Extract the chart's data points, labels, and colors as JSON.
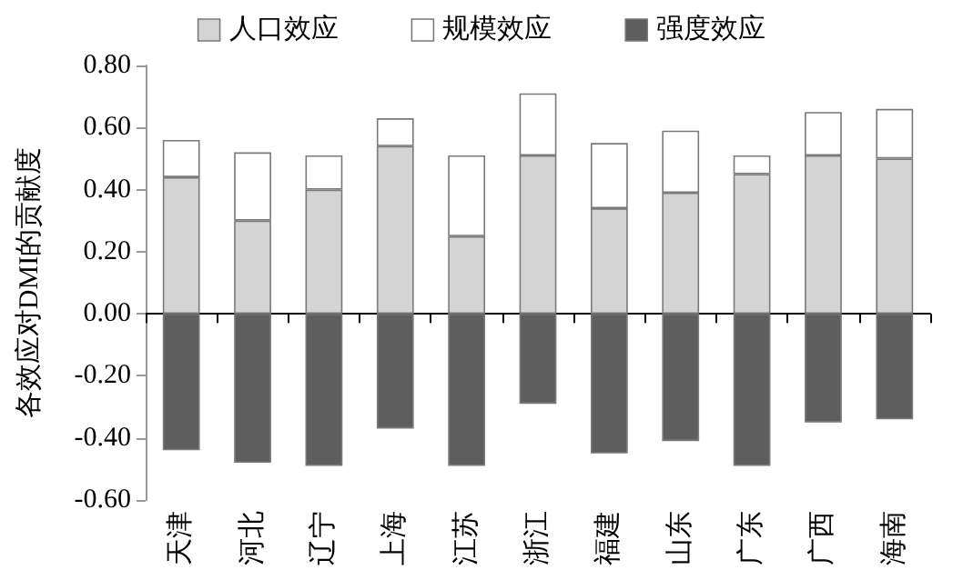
{
  "chart_data": {
    "type": "bar",
    "stacked": true,
    "ylabel": "各效应对DMI的贡献度",
    "categories": [
      "天津",
      "河北",
      "辽宁",
      "上海",
      "江苏",
      "浙江",
      "福建",
      "山东",
      "广东",
      "广西",
      "海南"
    ],
    "series": [
      {
        "name": "人口效应",
        "color": "#d4d4d4",
        "values": [
          0.44,
          0.3,
          0.4,
          0.54,
          0.25,
          0.51,
          0.34,
          0.39,
          0.45,
          0.51,
          0.5
        ]
      },
      {
        "name": "规模效应",
        "color": "#ffffff",
        "values": [
          0.12,
          0.22,
          0.11,
          0.09,
          0.26,
          0.2,
          0.21,
          0.2,
          0.06,
          0.14,
          0.16
        ]
      },
      {
        "name": "强度效应",
        "color": "#5e5e5e",
        "values": [
          -0.44,
          -0.48,
          -0.49,
          -0.37,
          -0.49,
          -0.29,
          -0.45,
          -0.41,
          -0.49,
          -0.35,
          -0.34
        ]
      }
    ],
    "ylim": [
      -0.6,
      0.8
    ],
    "yticks": [
      {
        "value": -0.6,
        "label": "-0.60"
      },
      {
        "value": -0.4,
        "label": "-0.40"
      },
      {
        "value": -0.2,
        "label": "-0.20"
      },
      {
        "value": 0,
        "label": "0.00"
      },
      {
        "value": 0.2,
        "label": "0.20"
      },
      {
        "value": 0.4,
        "label": "0.40"
      },
      {
        "value": 0.6,
        "label": "0.60"
      },
      {
        "value": 0.8,
        "label": "0.80"
      }
    ],
    "legend": "top"
  }
}
